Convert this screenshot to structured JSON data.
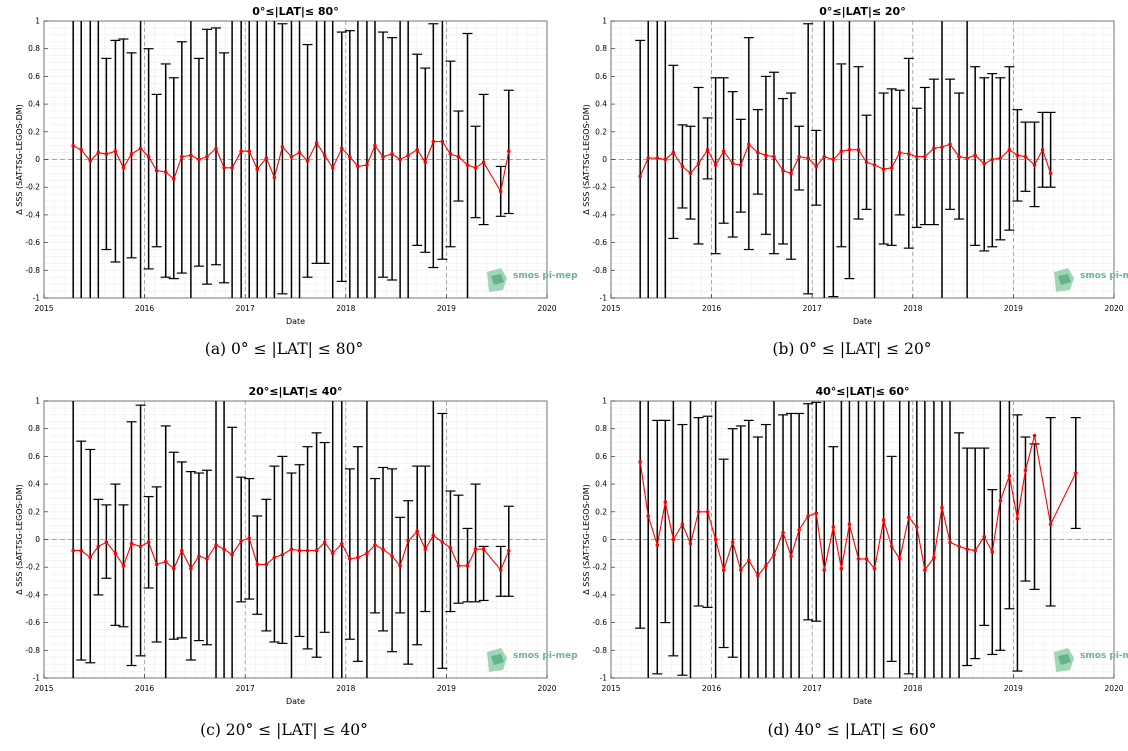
{
  "chart_data": [
    {
      "type": "line",
      "title": "0°≤|LAT|≤ 80°",
      "caption": "(a) 0° ≤ |LAT| ≤ 80°",
      "xlabel": "Date",
      "ylabel": "Δ SSS (SAT-TSG-LEGOS-DM)",
      "xlim": [
        2015,
        2020
      ],
      "ylim": [
        -1,
        1
      ],
      "x_ticks": [
        "2015",
        "2016",
        "2017",
        "2018",
        "2019",
        "2020"
      ],
      "y_ticks": [
        "-1",
        "-0.8",
        "-0.6",
        "-0.4",
        "-0.2",
        "0",
        "0.2",
        "0.4",
        "0.6",
        "0.8",
        "1"
      ],
      "grid": true,
      "logo": "smos pi-mep",
      "series": [
        {
          "color": "#ff0000",
          "x": [
            2015.29,
            2015.37,
            2015.46,
            2015.54,
            2015.62,
            2015.71,
            2015.79,
            2015.87,
            2015.96,
            2016.04,
            2016.12,
            2016.21,
            2016.29,
            2016.37,
            2016.46,
            2016.54,
            2016.62,
            2016.71,
            2016.79,
            2016.87,
            2016.96,
            2017.04,
            2017.12,
            2017.21,
            2017.29,
            2017.37,
            2017.46,
            2017.54,
            2017.62,
            2017.71,
            2017.79,
            2017.87,
            2017.96,
            2018.04,
            2018.12,
            2018.21,
            2018.29,
            2018.37,
            2018.46,
            2018.54,
            2018.62,
            2018.71,
            2018.79,
            2018.87,
            2018.96,
            2019.04,
            2019.12,
            2019.21,
            2019.29,
            2019.37,
            2019.54,
            2019.62
          ],
          "y": [
            0.1,
            0.07,
            -0.01,
            0.05,
            0.04,
            0.06,
            -0.06,
            0.04,
            0.08,
            0.02,
            -0.08,
            -0.09,
            -0.14,
            0.02,
            0.03,
            0.0,
            0.02,
            0.08,
            -0.06,
            -0.06,
            0.06,
            0.06,
            -0.07,
            0.01,
            -0.13,
            0.09,
            0.02,
            0.05,
            -0.01,
            0.12,
            0.03,
            -0.06,
            0.08,
            0.02,
            -0.05,
            -0.04,
            0.1,
            0.02,
            0.04,
            0.0,
            0.03,
            0.07,
            -0.02,
            0.13,
            0.13,
            0.04,
            0.02,
            -0.04,
            -0.06,
            -0.02,
            -0.23,
            0.06
          ],
          "err_low": [
            -1,
            -1,
            -1,
            -1,
            -0.65,
            -0.74,
            -1,
            -0.71,
            -1,
            -0.79,
            -0.63,
            -0.85,
            -0.86,
            -0.82,
            -1,
            -0.77,
            -0.9,
            -0.76,
            -0.89,
            -1,
            -1,
            -1,
            -1,
            -1,
            -1,
            -0.97,
            -1,
            -1,
            -0.85,
            -0.75,
            -0.75,
            -1,
            -0.88,
            -1,
            -1,
            -1,
            -1,
            -0.85,
            -0.87,
            -1,
            -1,
            -0.62,
            -0.67,
            -0.78,
            -0.72,
            -0.63,
            -0.3,
            -1,
            -0.42,
            -0.47,
            -0.41,
            -0.39
          ],
          "err_high": [
            1,
            1,
            1,
            1,
            0.73,
            0.86,
            0.87,
            0.77,
            1,
            0.8,
            0.47,
            0.69,
            0.59,
            0.85,
            1,
            0.73,
            0.94,
            0.95,
            0.77,
            1,
            1,
            1,
            1,
            1,
            1,
            0.98,
            1,
            1,
            0.83,
            1,
            1,
            1,
            0.92,
            0.93,
            1,
            1,
            1,
            0.92,
            0.88,
            1,
            1,
            0.76,
            0.66,
            0.98,
            1,
            0.71,
            0.35,
            0.91,
            0.24,
            0.47,
            -0.05,
            0.5
          ]
        }
      ]
    },
    {
      "type": "line",
      "title": "0°≤|LAT|≤ 20°",
      "caption": "(b) 0° ≤ |LAT| ≤ 20°",
      "xlabel": "Date",
      "ylabel": "Δ SSS (SAT-TSG-LEGOS-DM)",
      "xlim": [
        2015,
        2020
      ],
      "ylim": [
        -1,
        1
      ],
      "x_ticks": [
        "2015",
        "2016",
        "2017",
        "2018",
        "2019",
        "2020"
      ],
      "y_ticks": [
        "-1",
        "-0.8",
        "-0.6",
        "-0.4",
        "-0.2",
        "0",
        "0.2",
        "0.4",
        "0.6",
        "0.8",
        "1"
      ],
      "grid": true,
      "logo": "smos pi-mep",
      "series": [
        {
          "color": "#ff0000",
          "x": [
            2015.29,
            2015.37,
            2015.46,
            2015.54,
            2015.62,
            2015.71,
            2015.79,
            2015.87,
            2015.96,
            2016.04,
            2016.12,
            2016.21,
            2016.29,
            2016.37,
            2016.46,
            2016.54,
            2016.62,
            2016.71,
            2016.79,
            2016.87,
            2016.96,
            2017.04,
            2017.12,
            2017.21,
            2017.29,
            2017.37,
            2017.46,
            2017.54,
            2017.62,
            2017.71,
            2017.79,
            2017.87,
            2017.96,
            2018.04,
            2018.12,
            2018.21,
            2018.29,
            2018.37,
            2018.46,
            2018.54,
            2018.62,
            2018.71,
            2018.79,
            2018.87,
            2018.96,
            2019.04,
            2019.12,
            2019.21,
            2019.29,
            2019.37
          ],
          "y": [
            -0.12,
            0.01,
            0.01,
            0.0,
            0.05,
            -0.05,
            -0.1,
            -0.03,
            0.07,
            -0.04,
            0.06,
            -0.03,
            -0.04,
            0.11,
            0.05,
            0.03,
            0.02,
            -0.08,
            -0.1,
            0.02,
            0.01,
            -0.05,
            0.02,
            0.0,
            0.06,
            0.07,
            0.07,
            -0.02,
            -0.04,
            -0.07,
            -0.06,
            0.05,
            0.04,
            0.02,
            0.02,
            0.08,
            0.09,
            0.11,
            0.02,
            0.01,
            0.03,
            -0.03,
            0.0,
            0.01,
            0.07,
            0.03,
            0.02,
            -0.04,
            0.07,
            -0.1
          ],
          "err_low": [
            -1,
            -1,
            -1,
            -1,
            -0.57,
            -0.35,
            -0.43,
            -0.61,
            -0.14,
            -0.68,
            -0.46,
            -0.56,
            -0.38,
            -0.65,
            -0.25,
            -0.54,
            -0.68,
            -0.61,
            -0.72,
            -0.22,
            -0.97,
            -0.33,
            -1,
            -0.99,
            -0.63,
            -0.86,
            -0.43,
            -0.36,
            -1,
            -0.61,
            -0.62,
            -0.4,
            -0.64,
            -0.49,
            -0.47,
            -0.47,
            -1,
            -0.36,
            -0.43,
            -1,
            -0.62,
            -0.66,
            -0.63,
            -0.58,
            -0.51,
            -0.3,
            -0.23,
            -0.34,
            -0.2,
            -0.2
          ],
          "err_high": [
            0.86,
            1,
            1,
            1,
            0.68,
            0.25,
            0.24,
            0.52,
            0.3,
            0.59,
            0.59,
            0.49,
            0.29,
            0.88,
            0.36,
            0.6,
            0.63,
            0.44,
            0.48,
            0.24,
            0.98,
            0.21,
            1,
            1,
            0.69,
            1,
            0.67,
            0.32,
            1,
            0.48,
            0.51,
            0.5,
            0.73,
            0.37,
            0.52,
            0.58,
            1,
            0.58,
            0.48,
            1,
            0.67,
            0.59,
            0.62,
            0.59,
            0.67,
            0.36,
            0.27,
            0.27,
            0.34,
            0.34
          ]
        }
      ]
    },
    {
      "type": "line",
      "title": "20°≤|LAT|≤ 40°",
      "caption": "(c) 20° ≤ |LAT| ≤ 40°",
      "xlabel": "Date",
      "ylabel": "Δ SSS (SAT-TSG-LEGOS-DM)",
      "xlim": [
        2015,
        2020
      ],
      "ylim": [
        -1,
        1
      ],
      "x_ticks": [
        "2015",
        "2016",
        "2017",
        "2018",
        "2019",
        "2020"
      ],
      "y_ticks": [
        "-1",
        "-0.8",
        "-0.6",
        "-0.4",
        "-0.2",
        "0",
        "0.2",
        "0.4",
        "0.6",
        "0.8",
        "1"
      ],
      "grid": true,
      "logo": "smos pi-mep",
      "series": [
        {
          "color": "#ff0000",
          "x": [
            2015.29,
            2015.37,
            2015.46,
            2015.54,
            2015.62,
            2015.71,
            2015.79,
            2015.87,
            2015.96,
            2016.04,
            2016.12,
            2016.21,
            2016.29,
            2016.37,
            2016.46,
            2016.54,
            2016.62,
            2016.71,
            2016.79,
            2016.87,
            2016.96,
            2017.04,
            2017.12,
            2017.21,
            2017.29,
            2017.37,
            2017.46,
            2017.54,
            2017.62,
            2017.71,
            2017.79,
            2017.87,
            2017.96,
            2018.04,
            2018.12,
            2018.21,
            2018.29,
            2018.37,
            2018.46,
            2018.54,
            2018.62,
            2018.71,
            2018.79,
            2018.87,
            2018.96,
            2019.04,
            2019.12,
            2019.21,
            2019.29,
            2019.37,
            2019.54,
            2019.62
          ],
          "y": [
            -0.08,
            -0.08,
            -0.13,
            -0.05,
            -0.02,
            -0.1,
            -0.19,
            -0.03,
            -0.05,
            -0.02,
            -0.18,
            -0.16,
            -0.21,
            -0.08,
            -0.21,
            -0.12,
            -0.14,
            -0.04,
            -0.07,
            -0.11,
            -0.01,
            0.01,
            -0.18,
            -0.18,
            -0.13,
            -0.11,
            -0.07,
            -0.08,
            -0.08,
            -0.08,
            -0.02,
            -0.1,
            -0.03,
            -0.14,
            -0.13,
            -0.1,
            -0.04,
            -0.07,
            -0.12,
            -0.19,
            -0.01,
            0.06,
            -0.07,
            0.03,
            -0.02,
            -0.06,
            -0.19,
            -0.19,
            -0.07,
            -0.07,
            -0.22,
            -0.08
          ],
          "err_low": [
            -1,
            -0.87,
            -0.89,
            -0.4,
            -0.28,
            -0.62,
            -0.63,
            -0.91,
            -0.84,
            -0.35,
            -0.74,
            -1,
            -0.72,
            -0.71,
            -0.87,
            -0.73,
            -0.76,
            -1,
            -1,
            -1,
            -0.45,
            -0.43,
            -0.54,
            -0.66,
            -0.74,
            -0.75,
            -1,
            -0.7,
            -0.79,
            -0.85,
            -0.67,
            -1,
            -1,
            -0.72,
            -0.88,
            -1,
            -0.53,
            -0.66,
            -0.81,
            -0.53,
            -0.9,
            -0.76,
            -0.52,
            -1,
            -0.93,
            -0.52,
            -0.46,
            -0.45,
            -0.45,
            -0.44,
            -0.41,
            -0.41
          ],
          "err_high": [
            1,
            0.71,
            0.65,
            0.29,
            0.25,
            0.4,
            0.25,
            0.85,
            0.97,
            0.31,
            0.38,
            0.82,
            0.63,
            0.56,
            0.49,
            0.48,
            0.5,
            1,
            1,
            0.81,
            0.45,
            0.44,
            0.17,
            0.29,
            0.53,
            0.6,
            0.48,
            0.54,
            0.67,
            0.77,
            0.7,
            1,
            1,
            0.51,
            0.67,
            1,
            0.44,
            0.52,
            0.51,
            0.16,
            0.28,
            0.53,
            0.53,
            1,
            0.91,
            0.35,
            0.32,
            0.08,
            0.4,
            -0.05,
            -0.05,
            0.24
          ]
        }
      ]
    },
    {
      "type": "line",
      "title": "40°≤|LAT|≤ 60°",
      "caption": "(d) 40° ≤ |LAT| ≤ 60°",
      "xlabel": "Date",
      "ylabel": "Δ SSS (SAT-TSG-LEGOS-DM)",
      "xlim": [
        2015,
        2020
      ],
      "ylim": [
        -1,
        1
      ],
      "x_ticks": [
        "2015",
        "2016",
        "2017",
        "2018",
        "2019",
        "2020"
      ],
      "y_ticks": [
        "-1",
        "-0.8",
        "-0.6",
        "-0.4",
        "-0.2",
        "0",
        "0.2",
        "0.4",
        "0.6",
        "0.8",
        "1"
      ],
      "grid": true,
      "logo": "smos pi-mep",
      "series": [
        {
          "color": "#ff0000",
          "x": [
            2015.29,
            2015.37,
            2015.46,
            2015.54,
            2015.62,
            2015.71,
            2015.79,
            2015.87,
            2015.96,
            2016.04,
            2016.12,
            2016.21,
            2016.29,
            2016.37,
            2016.46,
            2016.54,
            2016.62,
            2016.71,
            2016.79,
            2016.87,
            2016.96,
            2017.04,
            2017.12,
            2017.21,
            2017.29,
            2017.37,
            2017.46,
            2017.54,
            2017.62,
            2017.71,
            2017.79,
            2017.87,
            2017.96,
            2018.04,
            2018.12,
            2018.21,
            2018.29,
            2018.37,
            2018.46,
            2018.54,
            2018.62,
            2018.71,
            2018.79,
            2018.87,
            2018.96,
            2019.04,
            2019.12,
            2019.21,
            2019.37,
            2019.62
          ],
          "y": [
            0.56,
            0.17,
            -0.04,
            0.27,
            0.0,
            0.11,
            -0.03,
            0.2,
            0.2,
            0.0,
            -0.22,
            -0.02,
            -0.22,
            -0.15,
            -0.26,
            -0.19,
            -0.11,
            0.05,
            -0.12,
            0.07,
            0.17,
            0.19,
            -0.22,
            0.09,
            -0.21,
            0.11,
            -0.14,
            -0.14,
            -0.21,
            0.14,
            -0.05,
            -0.14,
            0.16,
            0.09,
            -0.22,
            -0.13,
            0.23,
            -0.02,
            -0.05,
            -0.07,
            -0.08,
            0.02,
            -0.09,
            0.28,
            0.46,
            0.15,
            0.5,
            0.75,
            0.11,
            0.48
          ],
          "err_low": [
            -0.64,
            -1,
            -0.97,
            -0.6,
            -0.84,
            -0.98,
            -1,
            -0.48,
            -0.49,
            -1,
            -0.78,
            -0.85,
            -1,
            -1,
            -1,
            -1,
            -1,
            -1,
            -1,
            -1,
            -0.58,
            -0.59,
            -1,
            -1,
            -1,
            -1,
            -1,
            -1,
            -1,
            -1,
            -0.88,
            -1,
            -0.97,
            -1,
            -1,
            -1,
            -1,
            -1,
            -1,
            -0.91,
            -0.86,
            -0.62,
            -0.83,
            -0.8,
            -0.5,
            -0.95,
            -0.3,
            -0.36,
            -0.48,
            0.08
          ],
          "err_high": [
            1,
            1,
            0.86,
            0.86,
            1,
            0.83,
            1,
            0.88,
            0.89,
            1,
            0.58,
            0.8,
            0.82,
            0.86,
            0.74,
            0.83,
            1,
            0.9,
            0.91,
            0.91,
            0.98,
            0.99,
            1,
            0.67,
            1,
            1,
            1,
            1,
            1,
            1,
            0.6,
            1,
            1,
            1,
            1,
            1,
            1,
            1,
            0.77,
            0.66,
            0.66,
            0.66,
            0.36,
            1,
            1,
            0.9,
            0.74,
            0.69,
            0.88,
            0.88
          ]
        }
      ]
    }
  ]
}
